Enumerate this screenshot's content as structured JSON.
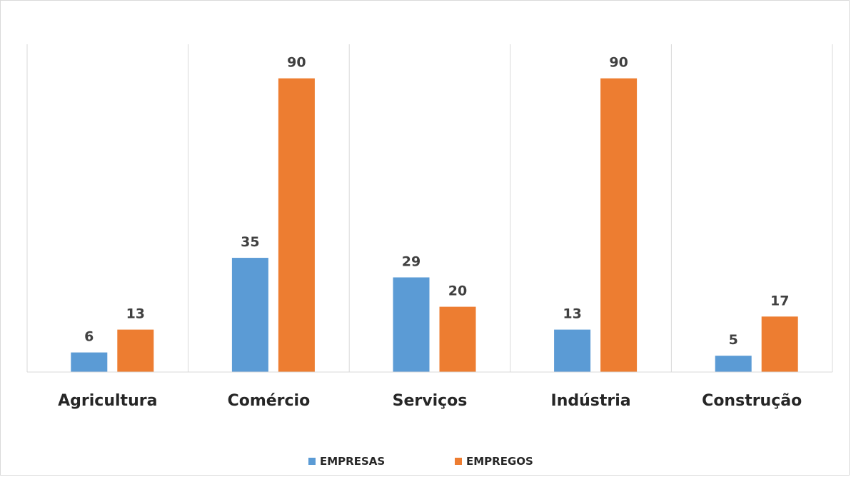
{
  "chart_data": {
    "type": "bar",
    "title": "",
    "xlabel": "",
    "ylabel": "",
    "ylim": [
      0,
      100
    ],
    "grid": "vertical category separators",
    "legend_position": "bottom",
    "categories": [
      "Agricultura",
      "Comércio",
      "Serviços",
      "Indústria",
      "Construção"
    ],
    "series": [
      {
        "name": "EMPRESAS",
        "color": "#5b9bd5",
        "values": [
          6,
          35,
          29,
          13,
          5
        ]
      },
      {
        "name": "EMPREGOS",
        "color": "#ed7d31",
        "values": [
          13,
          90,
          20,
          90,
          17
        ]
      }
    ]
  }
}
